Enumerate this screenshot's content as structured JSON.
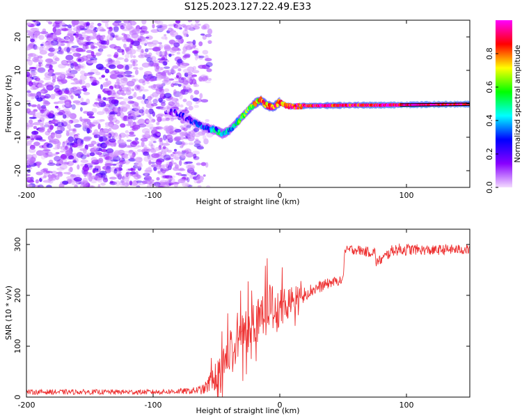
{
  "figure": {
    "title": "S125.2023.127.22.49.E33"
  },
  "chart_data": [
    {
      "type": "heatmap",
      "title": "",
      "xlabel": "Height of straight line (km)",
      "ylabel": "Frequency (Hz)",
      "xlim": [
        -200,
        150
      ],
      "ylim": [
        -25,
        25
      ],
      "xticks": [
        "-200",
        "-100",
        "0",
        "100"
      ],
      "yticks": [
        "20",
        "10",
        "0",
        "-10",
        "-20"
      ],
      "grid": false,
      "colorbar": {
        "label": "Normalized spectral amplitude",
        "range": [
          0,
          1
        ],
        "ticks": [
          "0.0",
          "0.2",
          "0.4",
          "0.6",
          "0.8"
        ],
        "colors": [
          "#f4dcff",
          "#8800ff",
          "#0000ff",
          "#00ffff",
          "#00ff00",
          "#ffff00",
          "#ff0000",
          "#ff00ff"
        ]
      },
      "ridge": {
        "x": [
          -90,
          -80,
          -70,
          -60,
          -50,
          -45,
          -40,
          -35,
          -30,
          -25,
          -20,
          -15,
          -10,
          -5,
          0,
          5,
          10,
          20,
          40,
          60,
          80,
          100,
          120,
          150
        ],
        "frequency": [
          -2,
          -3,
          -5,
          -7,
          -8,
          -9,
          -8,
          -6,
          -4,
          -2,
          0,
          1,
          -0.5,
          -1,
          0.5,
          -0.5,
          -0.8,
          -0.6,
          -0.5,
          -0.4,
          -0.4,
          -0.3,
          -0.2,
          -0.1
        ],
        "amplitude": [
          0.1,
          0.15,
          0.2,
          0.3,
          0.4,
          0.45,
          0.4,
          0.45,
          0.55,
          0.6,
          0.7,
          0.75,
          0.8,
          0.85,
          0.8,
          0.85,
          0.9,
          0.9,
          0.9,
          0.9,
          0.95,
          0.95,
          0.95,
          0.95
        ]
      }
    },
    {
      "type": "line",
      "title": "",
      "xlabel": "Height of straight line (km)",
      "ylabel": "SNR (10 * v/v)",
      "xlim": [
        -200,
        150
      ],
      "ylim": [
        0,
        330
      ],
      "xticks": [
        "-200",
        "-100",
        "0",
        "100"
      ],
      "yticks": [
        "300",
        "200",
        "100",
        "0"
      ],
      "grid": false,
      "series": [
        {
          "color": "#ee3333",
          "x": [
            -200,
            -150,
            -100,
            -70,
            -60,
            -50,
            -40,
            -30,
            -20,
            -10,
            0,
            10,
            20,
            30,
            40,
            50,
            51,
            55,
            60,
            70,
            75,
            76,
            80,
            90,
            100,
            110,
            120,
            130,
            140,
            150
          ],
          "y": [
            10,
            10,
            10,
            12,
            15,
            40,
            80,
            120,
            150,
            180,
            170,
            190,
            205,
            215,
            225,
            230,
            285,
            290,
            290,
            285,
            285,
            265,
            270,
            290,
            290,
            290,
            288,
            290,
            290,
            290
          ],
          "spread": [
            5,
            5,
            5,
            6,
            10,
            30,
            45,
            50,
            50,
            45,
            40,
            30,
            15,
            12,
            10,
            8,
            10,
            10,
            10,
            10,
            10,
            10,
            10,
            12,
            12,
            10,
            10,
            10,
            10,
            10
          ]
        }
      ]
    }
  ]
}
